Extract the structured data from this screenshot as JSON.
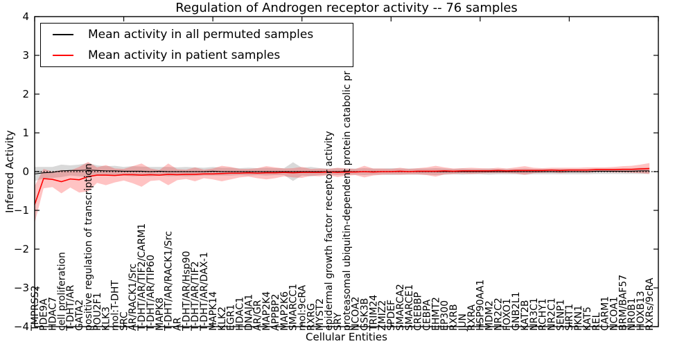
{
  "chart_data": {
    "type": "line",
    "title": "Regulation of Androgen receptor activity -- 76 samples",
    "xlabel": "Cellular Entities",
    "ylabel": "Inferred Activity",
    "xlim": [
      0,
      70
    ],
    "ylim": [
      -4,
      4
    ],
    "yticks": [
      4,
      3,
      2,
      1,
      0,
      -1,
      -2,
      -3,
      -4
    ],
    "x_major_tick_step": 10,
    "grid": false,
    "legend_position": "upper left",
    "zero_line": {
      "style": "dotted",
      "color": "#000000",
      "y": 0
    },
    "categories": [
      "TMPRSS2",
      "PDE9A",
      "HDAC7",
      "cell proliferation",
      "T-DHT/AR",
      "GATA2",
      "positive regulation of transcription",
      "POU2F1",
      "KLK3",
      "mol:T-DHT",
      "SRC",
      "AR/RACK1/Src",
      "T-DHT/AR/TIF2/CARM1",
      "T-DHT/AR/TIP60",
      "MAPK8",
      "T-DHT/AR/RACK1/Src",
      "AR",
      "T-DHT/AR/Hsp90",
      "T-DHT/AR/TIF2",
      "T-DHT/AR/DAX-1",
      "MAPK14",
      "KLK2",
      "EGR1",
      "HDAC1",
      "DNAJA1",
      "AR/GR",
      "MAP2K4",
      "APPBP2",
      "MAP2K6",
      "SMARCC1",
      "mol:9cRA",
      "RXRG",
      "MYST2",
      "epidermal growth factor receptor activity",
      "SRY",
      "proteasomal ubiquitin-dependent protein catabolic pr",
      "NCOA2",
      "GSK3B",
      "TRIM24",
      "ZMIZ2",
      "SPDEF",
      "SMARCA2",
      "SMARCE1",
      "CREBBP",
      "CEBPA",
      "EHMT2",
      "EP300",
      "RXRB",
      "JUN",
      "RXRA",
      "HSP90AA1",
      "MDM2",
      "NR2C2",
      "FOXO1",
      "GNB2L1",
      "KAT2B",
      "NR3C1",
      "RCHY1",
      "NR2C1",
      "SENP1",
      "SIRT1",
      "PKN1",
      "KAT5",
      "REL",
      "CARM1",
      "NCOA1",
      "BRM/BAF57",
      "NR0B1",
      "HOXB13",
      "RXRs/9cRA"
    ],
    "series": [
      {
        "name": "Mean activity in all permuted samples",
        "color": "#000000",
        "band_color": "rgba(128,128,128,0.30)",
        "values": [
          -0.06,
          -0.03,
          -0.02,
          0.02,
          0.03,
          0.03,
          0.04,
          0.03,
          0.02,
          0.02,
          0.01,
          0.01,
          0.01,
          0,
          0.01,
          0,
          0,
          0,
          0,
          0,
          0.01,
          0,
          0,
          0,
          0,
          0,
          0,
          0,
          0,
          0,
          0,
          0,
          0,
          0,
          0,
          0,
          0,
          0,
          0,
          0,
          0,
          0,
          0,
          0,
          0,
          0,
          0,
          0,
          0,
          0,
          0,
          0,
          0,
          0,
          0,
          0,
          0,
          0,
          0,
          0,
          0,
          0,
          0,
          0.01,
          0.01,
          0.01,
          0.01,
          0.01,
          0.02,
          0.02
        ],
        "std": [
          0.18,
          0.15,
          0.14,
          0.16,
          0.13,
          0.15,
          0.18,
          0.13,
          0.12,
          0.13,
          0.11,
          0.13,
          0.12,
          0.12,
          0.11,
          0.12,
          0.11,
          0.12,
          0.11,
          0.1,
          0.11,
          0.1,
          0.1,
          0.09,
          0.1,
          0.09,
          0.1,
          0.09,
          0.09,
          0.24,
          0.1,
          0.12,
          0.09,
          0.08,
          0.09,
          0.08,
          0.08,
          0.09,
          0.08,
          0.08,
          0.09,
          0.08,
          0.08,
          0.08,
          0.08,
          0.09,
          0.08,
          0.07,
          0.08,
          0.07,
          0.07,
          0.08,
          0.07,
          0.07,
          0.07,
          0.08,
          0.07,
          0.07,
          0.07,
          0.07,
          0.07,
          0.07,
          0.07,
          0.07,
          0.07,
          0.07,
          0.07,
          0.07,
          0.08,
          0.08
        ]
      },
      {
        "name": "Mean activity in patient samples",
        "color": "#ff0000",
        "band_color": "rgba(255,40,40,0.28)",
        "values": [
          -0.85,
          -0.18,
          -0.2,
          -0.26,
          -0.19,
          -0.21,
          -0.13,
          -0.09,
          -0.09,
          -0.1,
          -0.08,
          -0.08,
          -0.09,
          -0.08,
          -0.09,
          -0.07,
          -0.08,
          -0.07,
          -0.07,
          -0.06,
          -0.06,
          -0.05,
          -0.04,
          -0.04,
          -0.03,
          -0.04,
          -0.03,
          -0.03,
          -0.02,
          -0.03,
          -0.02,
          -0.02,
          -0.02,
          -0.01,
          -0.02,
          -0.01,
          -0.01,
          0,
          -0.01,
          0,
          0,
          0.01,
          0,
          0.01,
          0.01,
          0.01,
          0.02,
          0.01,
          0.02,
          0.02,
          0.02,
          0.02,
          0.03,
          0.02,
          0.03,
          0.03,
          0.03,
          0.03,
          0.04,
          0.03,
          0.04,
          0.04,
          0.04,
          0.05,
          0.05,
          0.05,
          0.06,
          0.06,
          0.07,
          0.08
        ],
        "std": [
          0.48,
          0.25,
          0.2,
          0.3,
          0.22,
          0.33,
          0.38,
          0.2,
          0.26,
          0.18,
          0.15,
          0.22,
          0.3,
          0.16,
          0.13,
          0.28,
          0.14,
          0.12,
          0.18,
          0.11,
          0.14,
          0.2,
          0.16,
          0.11,
          0.1,
          0.13,
          0.17,
          0.14,
          0.1,
          0.12,
          0.14,
          0.09,
          0.1,
          0.08,
          0.12,
          0.09,
          0.08,
          0.15,
          0.09,
          0.08,
          0.07,
          0.09,
          0.07,
          0.08,
          0.1,
          0.14,
          0.09,
          0.07,
          0.07,
          0.08,
          0.07,
          0.06,
          0.07,
          0.06,
          0.08,
          0.11,
          0.07,
          0.06,
          0.06,
          0.07,
          0.06,
          0.06,
          0.07,
          0.06,
          0.06,
          0.07,
          0.08,
          0.09,
          0.11,
          0.14
        ]
      }
    ]
  }
}
